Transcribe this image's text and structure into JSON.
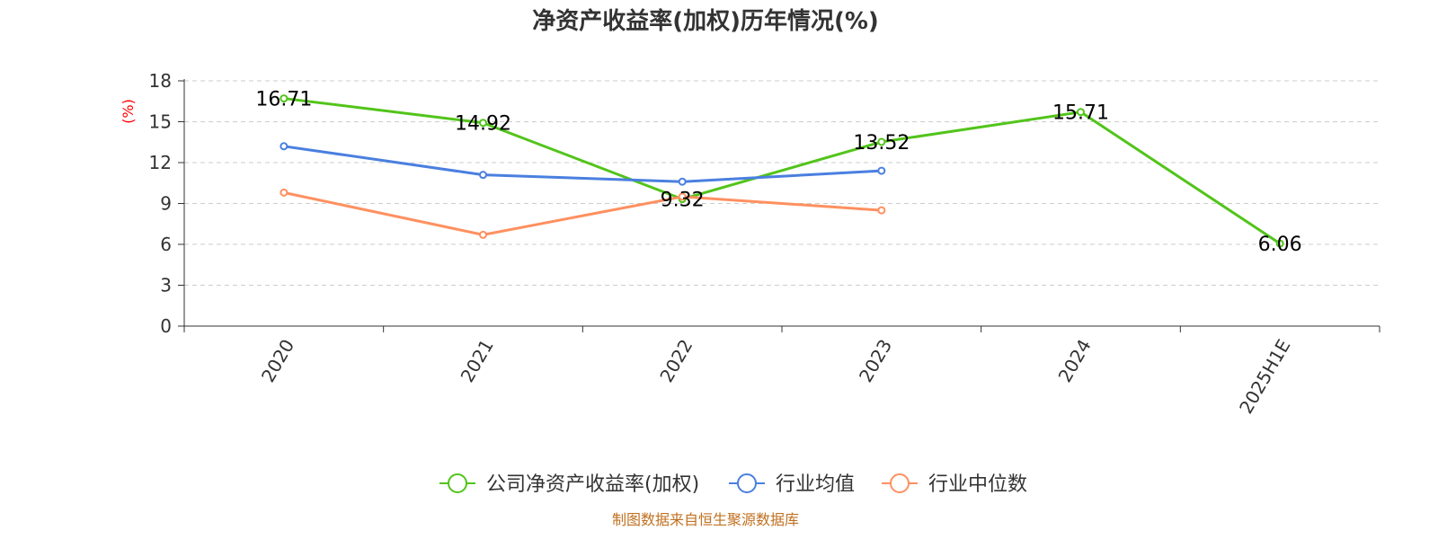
{
  "chart_data": {
    "type": "line",
    "title": "净资产收益率(加权)历年情况(%)",
    "ylabel": "(%)",
    "categories": [
      "2020",
      "2021",
      "2022",
      "2023",
      "2024",
      "2025H1E"
    ],
    "ylim": [
      0,
      18
    ],
    "yticks": [
      "0",
      "3",
      "6",
      "9",
      "12",
      "15",
      "18"
    ],
    "grid": true,
    "legend_position": "bottom",
    "series": [
      {
        "name": "公司净资产收益率(加权)",
        "color": "#52c41a",
        "values": [
          16.71,
          14.92,
          9.32,
          13.52,
          15.71,
          6.06
        ],
        "show_labels": true
      },
      {
        "name": "行业均值",
        "color": "#4a7fe0",
        "values": [
          13.2,
          11.1,
          10.6,
          11.4,
          null,
          null
        ],
        "show_labels": false
      },
      {
        "name": "行业中位数",
        "color": "#ff9060",
        "values": [
          9.8,
          6.7,
          9.5,
          8.5,
          null,
          null
        ],
        "show_labels": false
      }
    ]
  },
  "source_text": "制图数据来自恒生聚源数据库"
}
